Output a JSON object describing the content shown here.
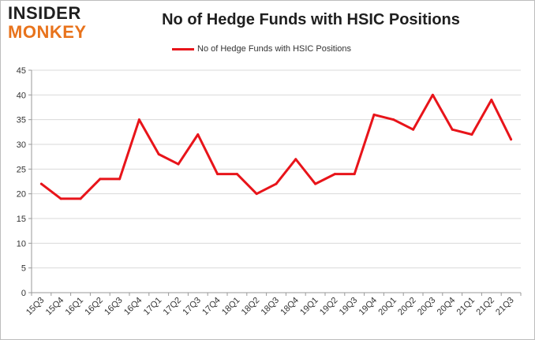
{
  "logo": {
    "line1": "INSIDER",
    "line2": "MONKEY",
    "line1_color": "#1f1f1f",
    "line2_color": "#e8731c"
  },
  "chart_data": {
    "type": "line",
    "title": "No of Hedge Funds with HSIC Positions",
    "xlabel": "",
    "ylabel": "",
    "categories": [
      "15Q3",
      "15Q4",
      "16Q1",
      "16Q2",
      "16Q3",
      "16Q4",
      "17Q1",
      "17Q2",
      "17Q3",
      "17Q4",
      "18Q1",
      "18Q2",
      "18Q3",
      "18Q4",
      "19Q1",
      "19Q2",
      "19Q3",
      "19Q4",
      "20Q1",
      "20Q2",
      "20Q3",
      "20Q4",
      "21Q1",
      "21Q2",
      "21Q3"
    ],
    "series": [
      {
        "name": "No of Hedge Funds with HSIC Positions",
        "color": "#e8141a",
        "values": [
          22,
          19,
          19,
          23,
          23,
          35,
          28,
          26,
          32,
          24,
          24,
          20,
          22,
          27,
          22,
          24,
          24,
          36,
          35,
          33,
          40,
          33,
          32,
          39,
          31
        ]
      }
    ],
    "ylim": [
      0,
      45
    ],
    "yticks": [
      0,
      5,
      10,
      15,
      20,
      25,
      30,
      35,
      40,
      45
    ],
    "grid": true,
    "legend_position": "top-center"
  }
}
